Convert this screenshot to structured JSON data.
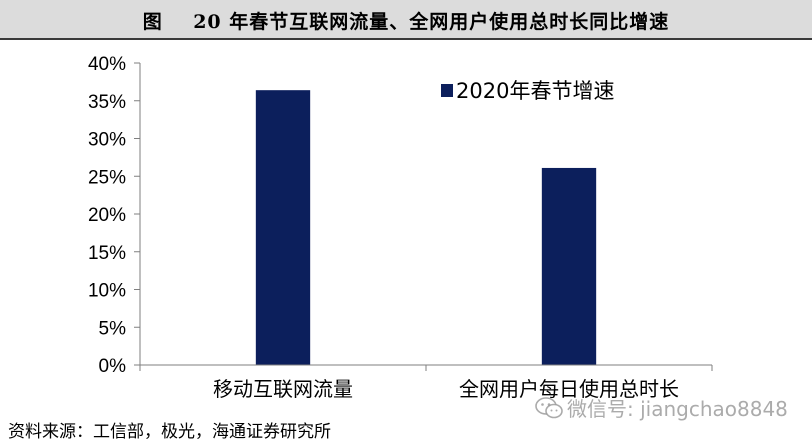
{
  "header": {
    "figure_label": "图",
    "title": "20 年春节互联网流量、全网用户使用总时长同比增速"
  },
  "chart_data": {
    "type": "bar",
    "title": "20 年春节互联网流量、全网用户使用总时长同比增速",
    "categories": [
      "移动互联网流量",
      "全网用户每日使用总时长"
    ],
    "series": [
      {
        "name": "2020年春节增速",
        "values": [
          0.364,
          0.261
        ],
        "color": "#0c1f5c"
      }
    ],
    "yticks": [
      "0%",
      "5%",
      "10%",
      "15%",
      "20%",
      "25%",
      "30%",
      "35%",
      "40%"
    ],
    "ylim": [
      0,
      0.4
    ],
    "xlabel": "",
    "ylabel": "",
    "grid": false,
    "legend_position": "top-right"
  },
  "footer": {
    "source": "资料来源：工信部，极光，海通证券研究所"
  },
  "watermark": {
    "icon": "wechat-icon",
    "text": "微信号: jiangchao8848"
  }
}
